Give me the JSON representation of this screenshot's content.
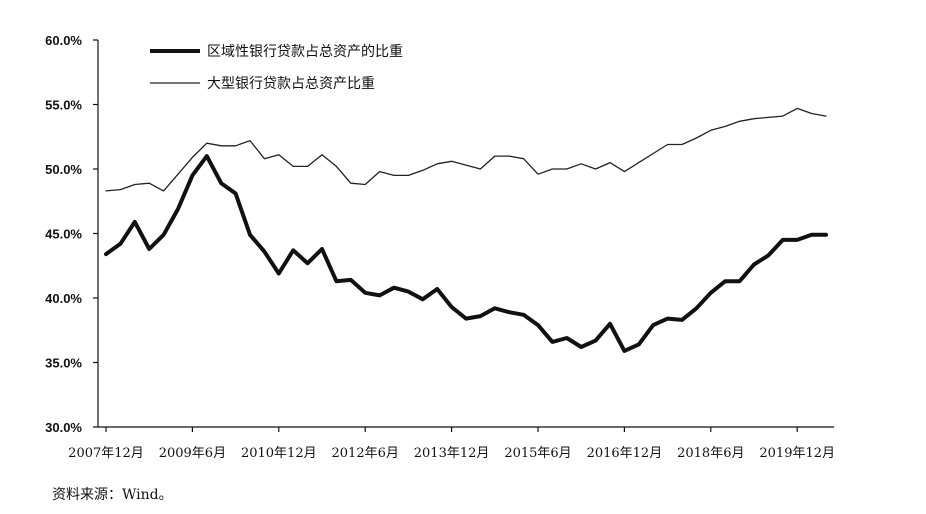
{
  "chart_data": {
    "type": "line",
    "title": "",
    "xlabel": "",
    "ylabel": "",
    "ylim": [
      30,
      60
    ],
    "y_ticks": [
      "60.0%",
      "55.0%",
      "50.0%",
      "45.0%",
      "40.0%",
      "35.0%",
      "30.0%"
    ],
    "x_ticks": [
      "2007年12月",
      "2009年6月",
      "2010年12月",
      "2012年6月",
      "2013年12月",
      "2015年6月",
      "2016年12月",
      "2018年6月",
      "2019年12月"
    ],
    "x": [
      "2007-12",
      "2008-03",
      "2008-06",
      "2008-09",
      "2008-12",
      "2009-03",
      "2009-06",
      "2009-09",
      "2009-12",
      "2010-03",
      "2010-06",
      "2010-09",
      "2010-12",
      "2011-03",
      "2011-06",
      "2011-09",
      "2011-12",
      "2012-03",
      "2012-06",
      "2012-09",
      "2012-12",
      "2013-03",
      "2013-06",
      "2013-09",
      "2013-12",
      "2014-03",
      "2014-06",
      "2014-09",
      "2014-12",
      "2015-03",
      "2015-06",
      "2015-09",
      "2015-12",
      "2016-03",
      "2016-06",
      "2016-09",
      "2016-12",
      "2017-03",
      "2017-06",
      "2017-09",
      "2017-12",
      "2018-03",
      "2018-06",
      "2018-09",
      "2018-12",
      "2019-03",
      "2019-06",
      "2019-09",
      "2019-12",
      "2020-03",
      "2020-06"
    ],
    "series": [
      {
        "name": "区域性银行贷款占总资产的比重",
        "style": "thick",
        "values": [
          43.4,
          44.2,
          45.9,
          43.8,
          44.9,
          46.9,
          49.5,
          51.0,
          48.9,
          48.1,
          44.9,
          43.6,
          41.9,
          43.7,
          42.7,
          43.8,
          41.3,
          41.4,
          40.4,
          40.2,
          40.8,
          40.5,
          39.9,
          40.7,
          39.3,
          38.4,
          38.6,
          39.2,
          38.9,
          38.7,
          37.9,
          36.6,
          36.9,
          36.2,
          36.7,
          38.0,
          35.9,
          36.4,
          37.9,
          38.4,
          38.3,
          39.2,
          40.4,
          41.3,
          41.3,
          42.6,
          43.3,
          44.5,
          44.5,
          44.9,
          44.9
        ],
        "color": "#111111"
      },
      {
        "name": "大型银行贷款占总资产比重",
        "style": "thin",
        "values": [
          48.3,
          48.4,
          48.8,
          48.9,
          48.3,
          49.6,
          50.9,
          52.0,
          51.8,
          51.8,
          52.2,
          50.8,
          51.1,
          50.2,
          50.2,
          51.1,
          50.2,
          48.9,
          48.8,
          49.8,
          49.5,
          49.5,
          49.9,
          50.4,
          50.6,
          50.3,
          50.0,
          51.0,
          51.0,
          50.8,
          49.6,
          50.0,
          50.0,
          50.4,
          50.0,
          50.5,
          49.8,
          50.5,
          51.2,
          51.9,
          51.9,
          52.4,
          53.0,
          53.3,
          53.7,
          53.9,
          54.0,
          54.1,
          54.7,
          54.3,
          54.1
        ],
        "color": "#222222"
      }
    ],
    "legend_position": "top-left",
    "grid": false
  },
  "source_note": "资料来源：Wind。"
}
